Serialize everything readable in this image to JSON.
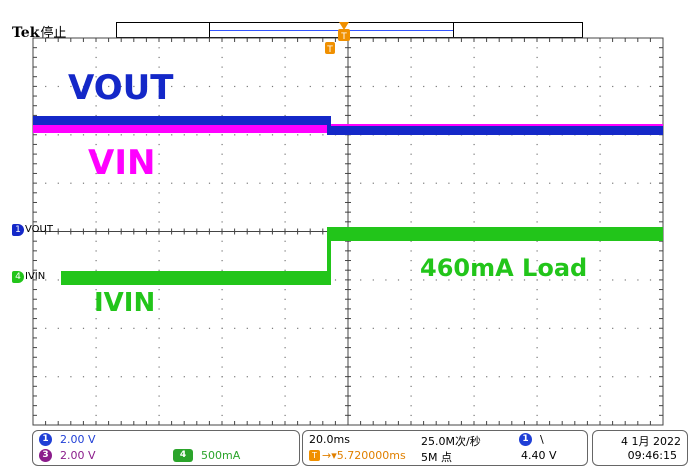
{
  "header": {
    "brand": "Tek",
    "status": "停止"
  },
  "trace_labels": {
    "vout": "VOUT",
    "vin": "VIN",
    "ivin": "IVIN",
    "load": "460mA Load"
  },
  "channel_markers": {
    "vout": {
      "badge": "1",
      "label": "VOUT"
    },
    "ivin": {
      "badge": "4",
      "label": "IVIN"
    }
  },
  "trigger": {
    "marker": "T"
  },
  "channels": [
    {
      "badge": "1",
      "scale": "2.00 V",
      "color": "#1f3fd6"
    },
    {
      "badge": "3",
      "scale": "2.00 V",
      "color": "#8b1c8b"
    },
    {
      "badge": "4",
      "scale": "500mA",
      "color": "#2ba42b"
    }
  ],
  "timebase": {
    "time_per_div": "20.0ms",
    "sample_rate": "25.0M次/秒",
    "trigger_position": "5.720000ms",
    "record_length": "5M 点",
    "trigger_channel": "1",
    "trigger_slope": "\\",
    "trigger_level": "4.40 V"
  },
  "datetime": {
    "date": "4 1月 2022",
    "time": "09:46:15"
  },
  "colors": {
    "vout_trace": "#1428c8",
    "vin_trace": "#ff00ff",
    "ivin_trace": "#22c51a",
    "trigger": "#f09000"
  }
}
